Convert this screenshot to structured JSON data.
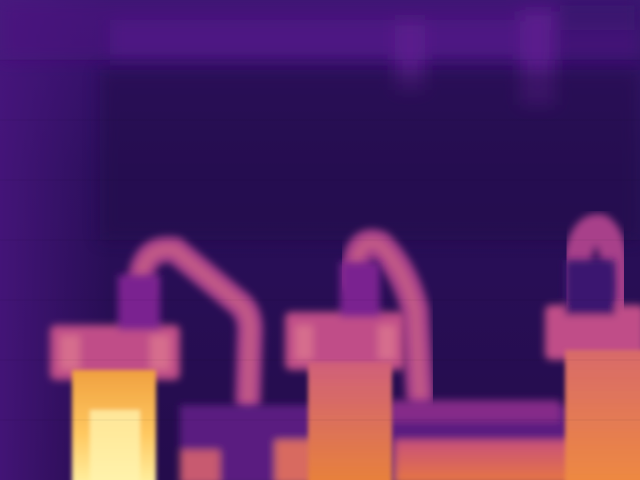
{
  "image": {
    "kind": "thermal-camera-frame",
    "palette": "inferno",
    "subject": "three-high-voltage-bushings-on-transformer",
    "palette_colors": {
      "coldest": "#1a0a3d",
      "cold": "#2a0f55",
      "cool": "#4a1680",
      "mid": "#7a2390",
      "warm": "#b84a80",
      "hot": "#e8823a",
      "hottest": "#fff0a0"
    },
    "components": [
      "bushing-left",
      "bushing-center",
      "bushing-right",
      "connecting-conductor-left",
      "connecting-conductor-center",
      "connecting-conductor-right",
      "transformer-tank",
      "overhead-structure"
    ]
  }
}
